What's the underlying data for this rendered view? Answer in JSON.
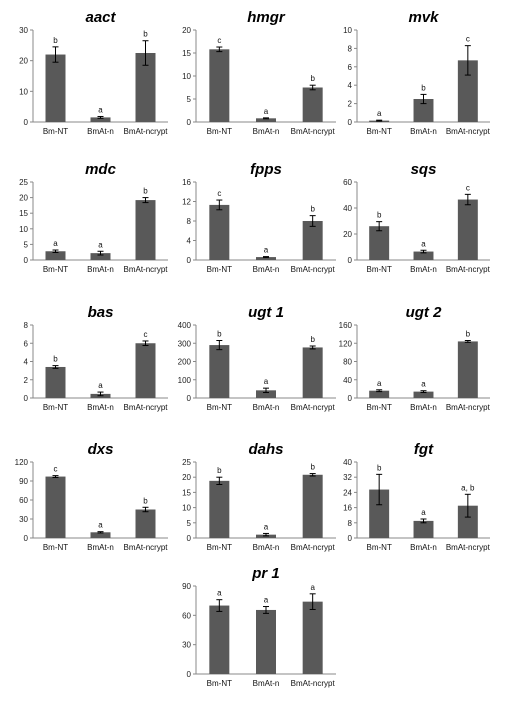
{
  "chart_data": [
    {
      "type": "bar",
      "title": "aact",
      "categories": [
        "Bm-NT",
        "BmAt-n",
        "BmAt-ncrypt"
      ],
      "values": [
        22,
        1.5,
        22.5
      ],
      "errors": [
        2.5,
        0.3,
        4
      ],
      "letters": [
        "b",
        "a",
        "b"
      ],
      "ylim": [
        0,
        30
      ],
      "yticks": [
        0,
        10,
        20,
        30
      ]
    },
    {
      "type": "bar",
      "title": "hmgr",
      "categories": [
        "Bm-NT",
        "BmAt-n",
        "BmAt-ncrypt"
      ],
      "values": [
        15.8,
        0.8,
        7.5
      ],
      "errors": [
        0.5,
        0.1,
        0.5
      ],
      "letters": [
        "c",
        "a",
        "b"
      ],
      "ylim": [
        0,
        20
      ],
      "yticks": [
        0,
        5,
        10,
        15,
        20
      ]
    },
    {
      "type": "bar",
      "title": "mvk",
      "categories": [
        "Bm-NT",
        "BmAt-n",
        "BmAt-ncrypt"
      ],
      "values": [
        0.15,
        2.5,
        6.7
      ],
      "errors": [
        0.05,
        0.5,
        1.6
      ],
      "letters": [
        "a",
        "b",
        "c"
      ],
      "ylim": [
        0,
        10
      ],
      "yticks": [
        0,
        2,
        4,
        6,
        8,
        10
      ]
    },
    {
      "type": "bar",
      "title": "mdc",
      "categories": [
        "Bm-NT",
        "BmAt-n",
        "BmAt-ncrypt"
      ],
      "values": [
        2.8,
        2.2,
        19.2
      ],
      "errors": [
        0.4,
        0.6,
        0.8
      ],
      "letters": [
        "a",
        "a",
        "b"
      ],
      "ylim": [
        0,
        25
      ],
      "yticks": [
        0,
        5,
        10,
        15,
        20,
        25
      ]
    },
    {
      "type": "bar",
      "title": "fpps",
      "categories": [
        "Bm-NT",
        "BmAt-n",
        "BmAt-ncrypt"
      ],
      "values": [
        11.3,
        0.6,
        8
      ],
      "errors": [
        1,
        0.1,
        1.1
      ],
      "letters": [
        "c",
        "a",
        "b"
      ],
      "ylim": [
        0,
        16
      ],
      "yticks": [
        0,
        4,
        8,
        12,
        16
      ]
    },
    {
      "type": "bar",
      "title": "sqs",
      "categories": [
        "Bm-NT",
        "BmAt-n",
        "BmAt-ncrypt"
      ],
      "values": [
        26,
        6.5,
        46.5
      ],
      "errors": [
        3.5,
        1,
        4
      ],
      "letters": [
        "b",
        "a",
        "c"
      ],
      "ylim": [
        0,
        60
      ],
      "yticks": [
        0,
        20,
        40,
        60
      ]
    },
    {
      "type": "bar",
      "title": "bas",
      "categories": [
        "Bm-NT",
        "BmAt-n",
        "BmAt-ncrypt"
      ],
      "values": [
        3.4,
        0.45,
        6
      ],
      "errors": [
        0.15,
        0.2,
        0.25
      ],
      "letters": [
        "b",
        "a",
        "c"
      ],
      "ylim": [
        0,
        8
      ],
      "yticks": [
        0,
        2,
        4,
        6,
        8
      ]
    },
    {
      "type": "bar",
      "title": "ugt 1",
      "categories": [
        "Bm-NT",
        "BmAt-n",
        "BmAt-ncrypt"
      ],
      "values": [
        290,
        42,
        277
      ],
      "errors": [
        25,
        12,
        8
      ],
      "letters": [
        "b",
        "a",
        "b"
      ],
      "ylim": [
        0,
        400
      ],
      "yticks": [
        0,
        100,
        200,
        300,
        400
      ]
    },
    {
      "type": "bar",
      "title": "ugt 2",
      "categories": [
        "Bm-NT",
        "BmAt-n",
        "BmAt-ncrypt"
      ],
      "values": [
        16,
        14,
        124
      ],
      "errors": [
        2,
        2,
        2
      ],
      "letters": [
        "a",
        "a",
        "b"
      ],
      "ylim": [
        0,
        160
      ],
      "yticks": [
        0,
        40,
        80,
        120,
        160
      ]
    },
    {
      "type": "bar",
      "title": "dxs",
      "categories": [
        "Bm-NT",
        "BmAt-n",
        "BmAt-ncrypt"
      ],
      "values": [
        97,
        9,
        45
      ],
      "errors": [
        1.5,
        1,
        3.5
      ],
      "letters": [
        "c",
        "a",
        "b"
      ],
      "ylim": [
        0,
        120
      ],
      "yticks": [
        0,
        30,
        60,
        90,
        120
      ]
    },
    {
      "type": "bar",
      "title": "dahs",
      "categories": [
        "Bm-NT",
        "BmAt-n",
        "BmAt-ncrypt"
      ],
      "values": [
        18.8,
        1.1,
        20.8
      ],
      "errors": [
        1.2,
        0.4,
        0.4
      ],
      "letters": [
        "b",
        "a",
        "b"
      ],
      "ylim": [
        0,
        25
      ],
      "yticks": [
        0,
        5,
        10,
        15,
        20,
        25
      ]
    },
    {
      "type": "bar",
      "title": "fgt",
      "categories": [
        "Bm-NT",
        "BmAt-n",
        "BmAt-ncrypt"
      ],
      "values": [
        25.5,
        9,
        17
      ],
      "errors": [
        8,
        1,
        6
      ],
      "letters": [
        "b",
        "a",
        "a, b"
      ],
      "ylim": [
        0,
        40
      ],
      "yticks": [
        0,
        8,
        16,
        24,
        32,
        40
      ]
    },
    {
      "type": "bar",
      "title": "pr 1",
      "categories": [
        "Bm-NT",
        "BmAt-n",
        "BmAt-ncrypt"
      ],
      "values": [
        70,
        65.5,
        74
      ],
      "errors": [
        6,
        3.5,
        8
      ],
      "letters": [
        "a",
        "a",
        "a"
      ],
      "ylim": [
        0,
        90
      ],
      "yticks": [
        0,
        30,
        60,
        90
      ]
    }
  ]
}
